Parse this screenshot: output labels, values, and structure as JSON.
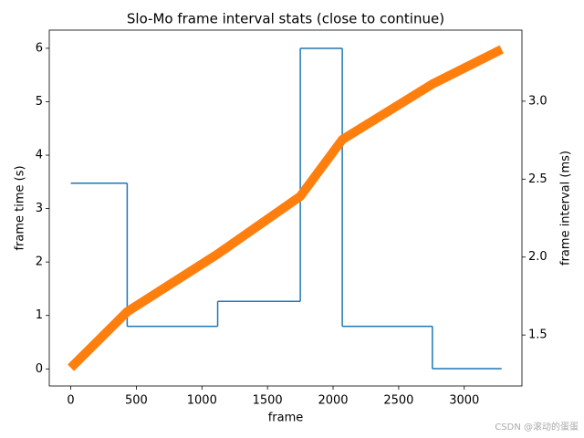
{
  "chart_data": {
    "type": "line",
    "title": "Slo-Mo frame interval stats (close to continue)",
    "xlabel": "frame",
    "ylabel": "frame time (s)",
    "y2label": "frame interval (ms)",
    "x": [
      0,
      430,
      1120,
      1750,
      2070,
      2757,
      3285
    ],
    "series": [
      {
        "name": "frame time",
        "color": "#ff7f0e",
        "values": [
          0.02,
          1.07,
          2.15,
          3.23,
          4.29,
          5.33,
          5.98
        ],
        "width": 10
      },
      {
        "name": "frame interval",
        "color": "#1f77b4",
        "axis": "y2",
        "step": "post",
        "values": [
          2.474,
          1.556,
          1.716,
          3.339,
          1.556,
          1.284,
          1.284
        ],
        "width": 1.5
      }
    ],
    "xlim": [
      -164,
      3440
    ],
    "xticks": [
      0,
      500,
      1000,
      1500,
      2000,
      2500,
      3000
    ],
    "ylim": [
      -0.32,
      6.34
    ],
    "yticks": [
      0,
      1,
      2,
      3,
      4,
      5,
      6
    ],
    "y2lim": [
      1.173,
      3.456
    ],
    "y2ticks": [
      1.5,
      {
        "value": 2.0,
        "label": "2.0"
      },
      2.5,
      {
        "value": 3.0,
        "label": "3.0"
      }
    ],
    "annotation": "CSDN @滚动的蛋蛋"
  }
}
